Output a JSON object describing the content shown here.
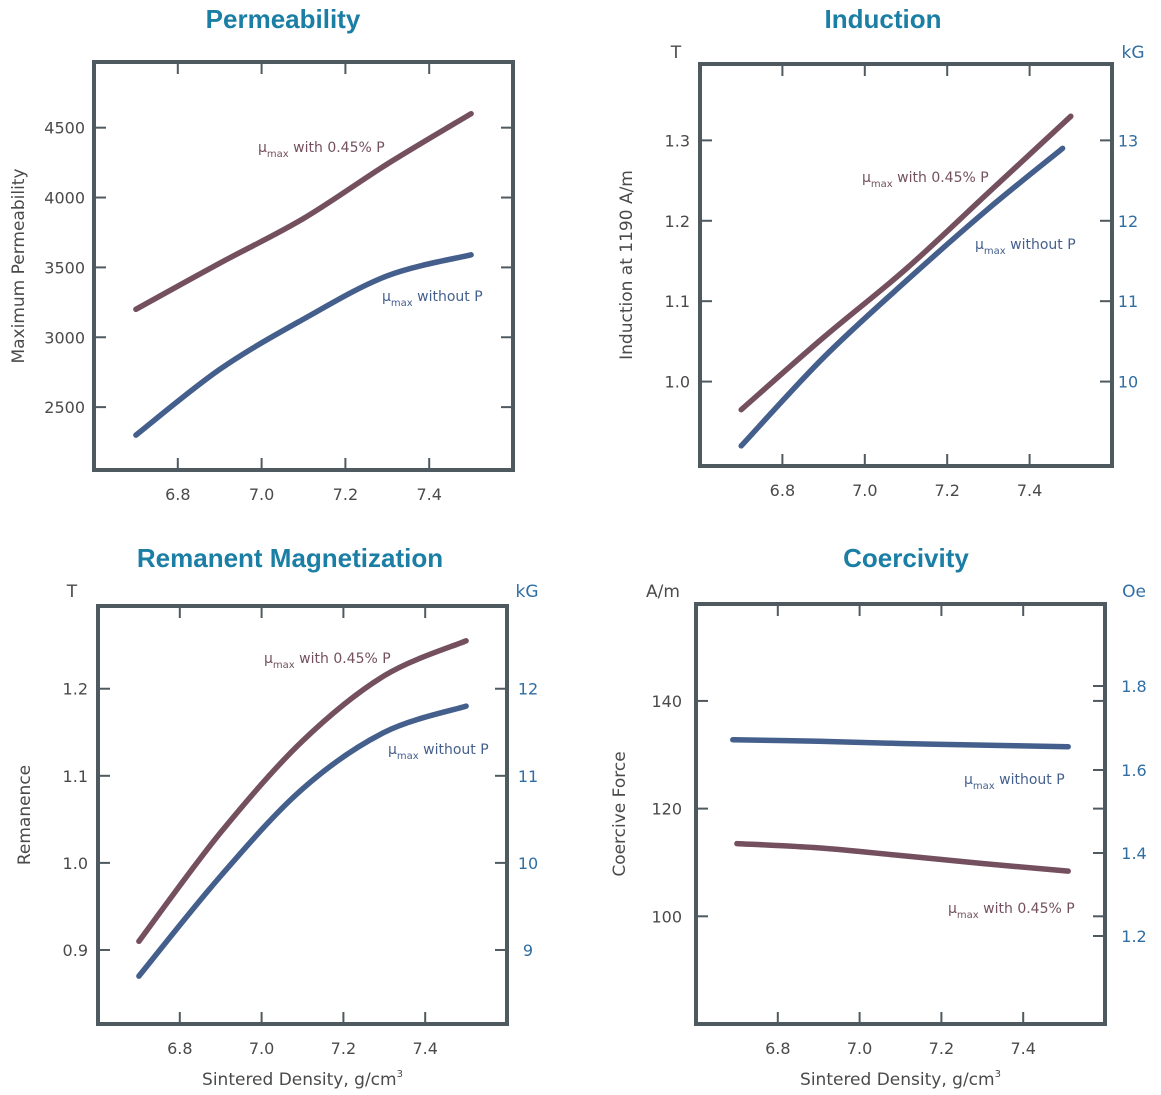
{
  "colors": {
    "title": "#1a7ea5",
    "frame": "#4f5a60",
    "with_p": "#74505f",
    "without_p": "#445f8c",
    "right_axis": "#2f6ea3"
  },
  "chart_data": [
    {
      "type": "line",
      "title": "Permeability",
      "xlabel": "",
      "ylabel": "Maximum Permeability",
      "xlim": [
        6.6,
        7.6
      ],
      "ylim": [
        2050,
        4970
      ],
      "x_ticks": [
        "6.8",
        "7.0",
        "7.2",
        "7.4"
      ],
      "y_ticks": [
        "2500",
        "3000",
        "3500",
        "4000",
        "4500"
      ],
      "y_unit": "",
      "right_unit": "",
      "right_ticks": [],
      "series": [
        {
          "name": "with 0.45% P",
          "x": [
            6.7,
            6.9,
            7.1,
            7.3,
            7.5
          ],
          "y": [
            3200,
            3530,
            3850,
            4240,
            4600
          ]
        },
        {
          "name": "without P",
          "x": [
            6.7,
            6.9,
            7.1,
            7.3,
            7.5
          ],
          "y": [
            2300,
            2770,
            3130,
            3440,
            3590
          ]
        }
      ]
    },
    {
      "type": "line",
      "title": "Induction",
      "xlabel": "",
      "ylabel": "Induction at 1190 A/m",
      "xlim": [
        6.6,
        7.6
      ],
      "ylim": [
        0.895,
        1.395
      ],
      "x_ticks": [
        "6.8",
        "7.0",
        "7.2",
        "7.4"
      ],
      "y_ticks": [
        "1.0",
        "1.1",
        "1.2",
        "1.3"
      ],
      "y_unit": "T",
      "right_unit": "kG",
      "right_ticks": [
        "10",
        "11",
        "12",
        "13"
      ],
      "series": [
        {
          "name": "with 0.45% P",
          "x": [
            6.7,
            6.9,
            7.1,
            7.3,
            7.5
          ],
          "y": [
            0.965,
            1.055,
            1.14,
            1.235,
            1.33
          ]
        },
        {
          "name": "without P",
          "x": [
            6.7,
            6.9,
            7.1,
            7.3,
            7.48
          ],
          "y": [
            0.92,
            1.03,
            1.125,
            1.215,
            1.29
          ]
        }
      ]
    },
    {
      "type": "line",
      "title": "Remanent Magnetization",
      "xlabel": "Sintered Density, g/cm",
      "xlabel_sup": "3",
      "ylabel": "Remanence",
      "xlim": [
        6.6,
        7.6
      ],
      "ylim": [
        0.815,
        1.295
      ],
      "x_ticks": [
        "6.8",
        "7.0",
        "7.2",
        "7.4"
      ],
      "y_ticks": [
        "0.9",
        "1.0",
        "1.1",
        "1.2"
      ],
      "y_unit": "T",
      "right_unit": "kG",
      "right_ticks": [
        "9",
        "10",
        "11",
        "12"
      ],
      "series": [
        {
          "name": "with 0.45% P",
          "x": [
            6.7,
            6.9,
            7.1,
            7.3,
            7.5
          ],
          "y": [
            0.91,
            1.035,
            1.14,
            1.215,
            1.255
          ]
        },
        {
          "name": "without P",
          "x": [
            6.7,
            6.9,
            7.1,
            7.3,
            7.5
          ],
          "y": [
            0.87,
            0.985,
            1.085,
            1.15,
            1.18
          ]
        }
      ]
    },
    {
      "type": "line",
      "title": "Coercivity",
      "xlabel": "Sintered Density, g/cm",
      "xlabel_sup": "3",
      "ylabel": "Coercive Force",
      "xlim": [
        6.6,
        7.6
      ],
      "ylim": [
        80,
        158
      ],
      "x_ticks": [
        "6.8",
        "7.0",
        "7.2",
        "7.4"
      ],
      "y_ticks": [
        "100",
        "120",
        "140"
      ],
      "y_unit": "A/m",
      "right_unit": "Oe",
      "right_ticks": [
        "1.2",
        "1.4",
        "1.6",
        "1.8"
      ],
      "series": [
        {
          "name": "without P",
          "x": [
            6.69,
            6.9,
            7.1,
            7.3,
            7.51
          ],
          "y": [
            132.8,
            132.5,
            132.1,
            131.8,
            131.5
          ]
        },
        {
          "name": "with 0.45% P",
          "x": [
            6.7,
            6.9,
            7.1,
            7.3,
            7.51
          ],
          "y": [
            113.5,
            112.7,
            111.3,
            109.8,
            108.4
          ]
        }
      ]
    }
  ],
  "labels": [
    {
      "mu": "μ",
      "sub": "max",
      "text": " with 0.45% P"
    },
    {
      "mu": "μ",
      "sub": "max",
      "text": " without P"
    },
    {
      "mu": "μ",
      "sub": "max",
      "text": " with 0.45% P"
    },
    {
      "mu": "μ",
      "sub": "max",
      "text": " without P"
    },
    {
      "mu": "μ",
      "sub": "max",
      "text": " with 0.45% P"
    },
    {
      "mu": "μ",
      "sub": "max",
      "text": " without P"
    },
    {
      "mu": "μ",
      "sub": "max",
      "text": " without P"
    },
    {
      "mu": "μ",
      "sub": "max",
      "text": " with 0.45% P"
    }
  ]
}
